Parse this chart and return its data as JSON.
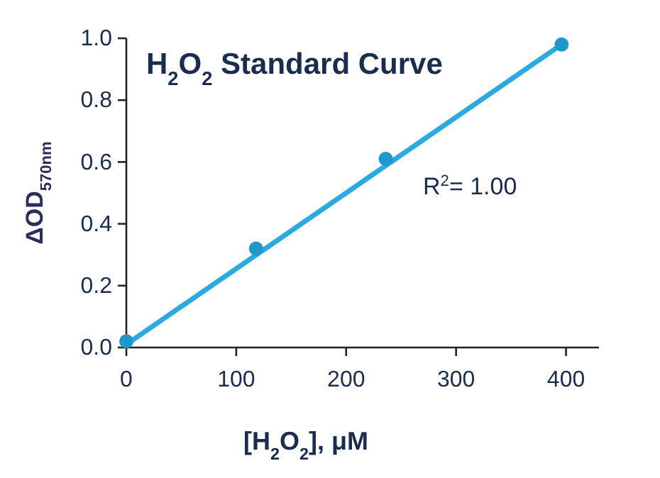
{
  "chart_data": {
    "type": "scatter",
    "title": "H$_{2}$O$_{2}$ Standard Curve",
    "xlabel": "[H$_{2}$O$_{2}$], μM",
    "ylabel": "ΔOD$_{570nm}$",
    "x": [
      0,
      118,
      236,
      396
    ],
    "series": [
      {
        "color": "#1f97cc",
        "values": [
          0.02,
          0.32,
          0.61,
          0.98
        ],
        "marker": "circle"
      },
      {
        "type": "line",
        "color": "#2aaae0",
        "x": [
          0,
          396
        ],
        "values": [
          0.01,
          0.98
        ],
        "marker": "none",
        "line_style": "solid"
      }
    ],
    "annotations": [
      "R$^{2}$= 1.00"
    ],
    "xlim": [
      0,
      430
    ],
    "xticks": [
      0,
      100,
      200,
      300,
      400
    ],
    "ylim": [
      0,
      1.0
    ],
    "yticks": [
      {
        "value": 0,
        "label": "0.0"
      },
      {
        "value": 0.2,
        "label": "0.2"
      },
      {
        "value": 0.4,
        "label": "0.4"
      },
      {
        "value": 0.6,
        "label": "0.6"
      },
      {
        "value": 0.8,
        "label": "0.8"
      },
      {
        "value": 1.0,
        "label": "1.0"
      }
    ],
    "grid": false
  }
}
